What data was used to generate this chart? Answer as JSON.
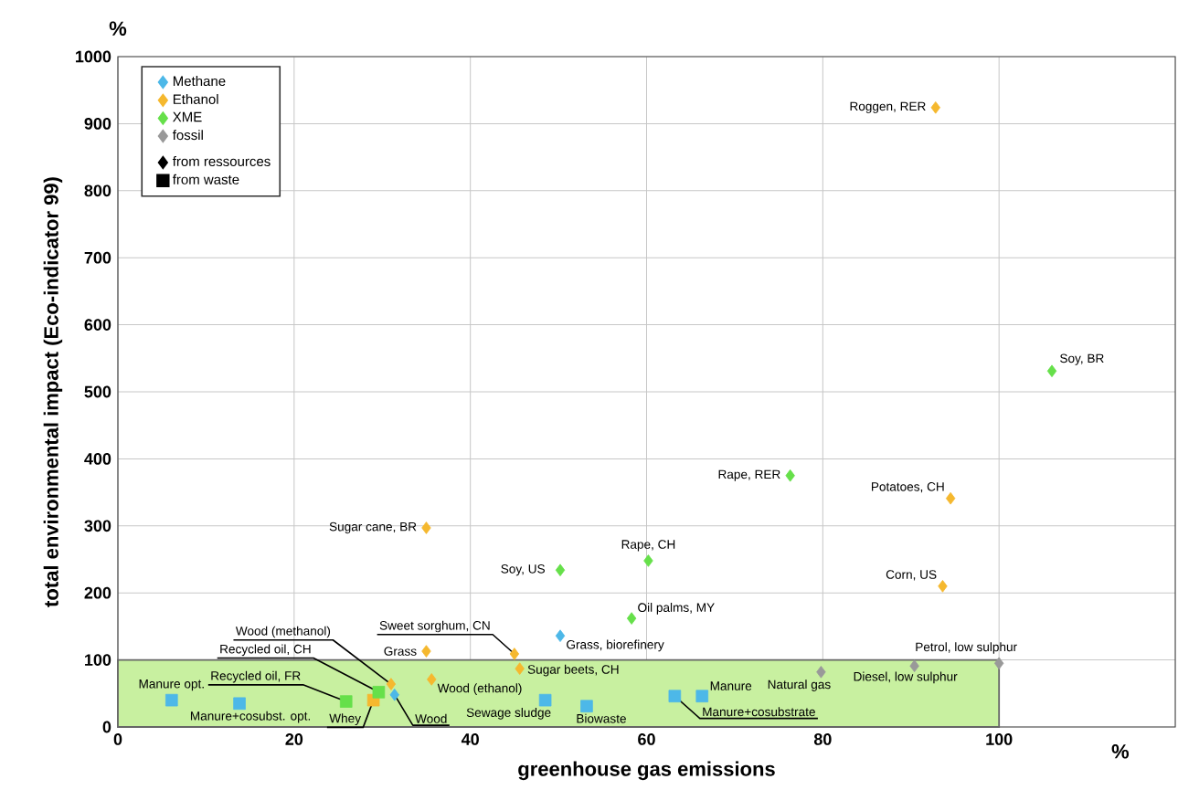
{
  "chart_data": {
    "type": "scatter",
    "xlabel": "greenhouse gas emissions",
    "ylabel": "total environmental impact (Eco-indicator 99)",
    "xlim": [
      0,
      120
    ],
    "xticks": [
      0,
      20,
      40,
      60,
      80,
      100
    ],
    "ylim": [
      0,
      1000
    ],
    "yticks": [
      0,
      100,
      200,
      300,
      400,
      500,
      600,
      700,
      800,
      900,
      1000
    ],
    "grid": true,
    "legend": "top left",
    "series": [
      {
        "type": "area",
        "color": "#c8f0a0",
        "x": [
          0,
          100
        ],
        "values": [
          100,
          100
        ]
      },
      {
        "name": "Methane",
        "color": "#4db8e8",
        "marker": "diamond",
        "x": [
          31.4,
          50.2
        ],
        "values": [
          48,
          136
        ]
      },
      {
        "color": "#4db8e8",
        "marker": "square",
        "x": [
          6.1,
          13.8,
          48.5,
          53.2,
          63.2,
          66.3
        ],
        "values": [
          40,
          35,
          40,
          31,
          46,
          46
        ]
      },
      {
        "name": "Ethanol",
        "color": "#f5b82e",
        "marker": "diamond",
        "x": [
          92.8,
          94.5,
          35,
          93.6,
          45,
          35,
          45.6,
          35.6,
          31
        ],
        "values": [
          924,
          341,
          297,
          210,
          109,
          113,
          87,
          71,
          64
        ]
      },
      {
        "color": "#f5b82e",
        "marker": "square",
        "x": [
          29
        ],
        "values": [
          40
        ]
      },
      {
        "name": "XME",
        "color": "#66e04a",
        "marker": "diamond",
        "x": [
          106,
          76.3,
          60.2,
          50.2,
          58.3
        ],
        "values": [
          531,
          375,
          248,
          234,
          162
        ]
      },
      {
        "color": "#66e04a",
        "marker": "square",
        "x": [
          29.6,
          25.9
        ],
        "values": [
          52,
          38
        ]
      },
      {
        "name": "fossil",
        "color": "#999999",
        "marker": "diamond",
        "x": [
          79.8,
          90.4,
          100
        ],
        "values": [
          82,
          91,
          95
        ]
      },
      {
        "name": "from ressources",
        "color": "#000000",
        "marker": "diamond"
      },
      {
        "name": "from waste",
        "color": "#000000",
        "marker": "square"
      }
    ],
    "annotations": [
      {
        "text": "Wood",
        "x": 31.4,
        "y": 48
      },
      {
        "text": "Grass, biorefinery",
        "x": 50.2,
        "y": 136
      },
      {
        "text": "Manure opt.",
        "x": 6.1,
        "y": 40
      },
      {
        "text": "Manure+cosubst. opt.",
        "x": 13.8,
        "y": 35
      },
      {
        "text": "Sewage sludge",
        "x": 48.5,
        "y": 40
      },
      {
        "text": "Biowaste",
        "x": 53.2,
        "y": 31
      },
      {
        "text": "Manure+cosubstrate",
        "x": 63.2,
        "y": 46
      },
      {
        "text": "Manure",
        "x": 66.3,
        "y": 46
      },
      {
        "text": "Roggen, RER",
        "x": 92.8,
        "y": 924
      },
      {
        "text": "Potatoes, CH",
        "x": 94.5,
        "y": 341
      },
      {
        "text": "Sugar cane, BR",
        "x": 35,
        "y": 297
      },
      {
        "text": "Corn, US",
        "x": 93.6,
        "y": 210
      },
      {
        "text": "Sweet sorghum, CN",
        "x": 45,
        "y": 109
      },
      {
        "text": "Grass",
        "x": 35,
        "y": 113
      },
      {
        "text": "Sugar beets, CH",
        "x": 45.6,
        "y": 87
      },
      {
        "text": "Wood (ethanol)",
        "x": 35.6,
        "y": 71
      },
      {
        "text": "Wood (methanol)",
        "x": 31,
        "y": 64
      },
      {
        "text": "Whey",
        "x": 29,
        "y": 40
      },
      {
        "text": "Soy, BR",
        "x": 106,
        "y": 531
      },
      {
        "text": "Rape, RER",
        "x": 76.3,
        "y": 375
      },
      {
        "text": "Rape, CH",
        "x": 60.2,
        "y": 248
      },
      {
        "text": "Soy, US",
        "x": 50.2,
        "y": 234
      },
      {
        "text": "Oil palms, MY",
        "x": 58.3,
        "y": 162
      },
      {
        "text": "Recycled oil, CH",
        "x": 29.6,
        "y": 52
      },
      {
        "text": "Recycled oil, FR",
        "x": 25.9,
        "y": 38
      },
      {
        "text": "Natural gas",
        "x": 79.8,
        "y": 82
      },
      {
        "text": "Diesel, low sulphur",
        "x": 90.4,
        "y": 91
      },
      {
        "text": "Petrol, low sulphur",
        "x": 100,
        "y": 95
      },
      "%",
      "%"
    ]
  }
}
